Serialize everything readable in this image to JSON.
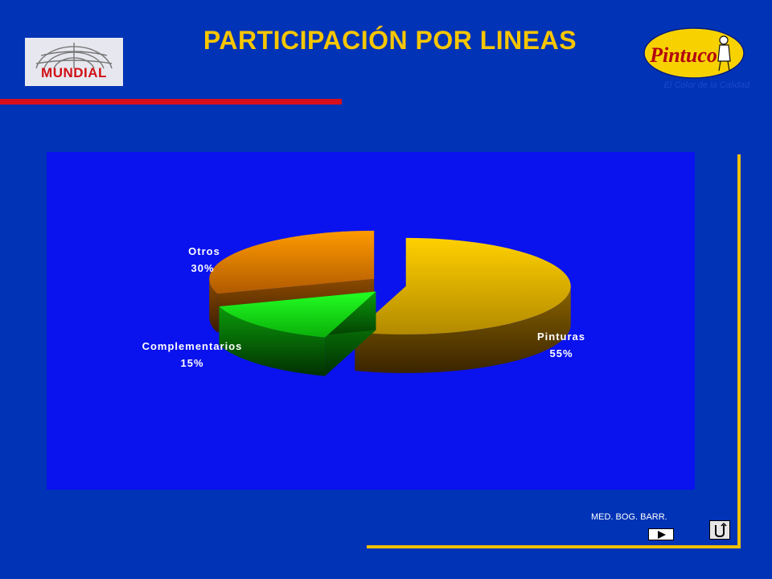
{
  "header": {
    "title": "PARTICIPACIÓN POR LINEAS",
    "logo_left_text": "MUNDIAL",
    "logo_right_text": "Pintuco",
    "logo_right_tagline": "El Color de la Calidad"
  },
  "footer": {
    "text": "MED. BOG. BARR."
  },
  "colors": {
    "background": "#0033b6",
    "plot_area": "#0a12ee",
    "title": "#f7c600",
    "pinturas": "#f5c200",
    "complementarios": "#12e012",
    "otros": "#f28a00"
  },
  "chart_data": {
    "type": "pie",
    "style": "3d-exploded",
    "slices": [
      {
        "label": "Pinturas",
        "value": 55,
        "value_label": "55%"
      },
      {
        "label": "Complementarios",
        "value": 15,
        "value_label": "15%"
      },
      {
        "label": "Otros",
        "value": 30,
        "value_label": "30%"
      }
    ],
    "legend": "none"
  }
}
